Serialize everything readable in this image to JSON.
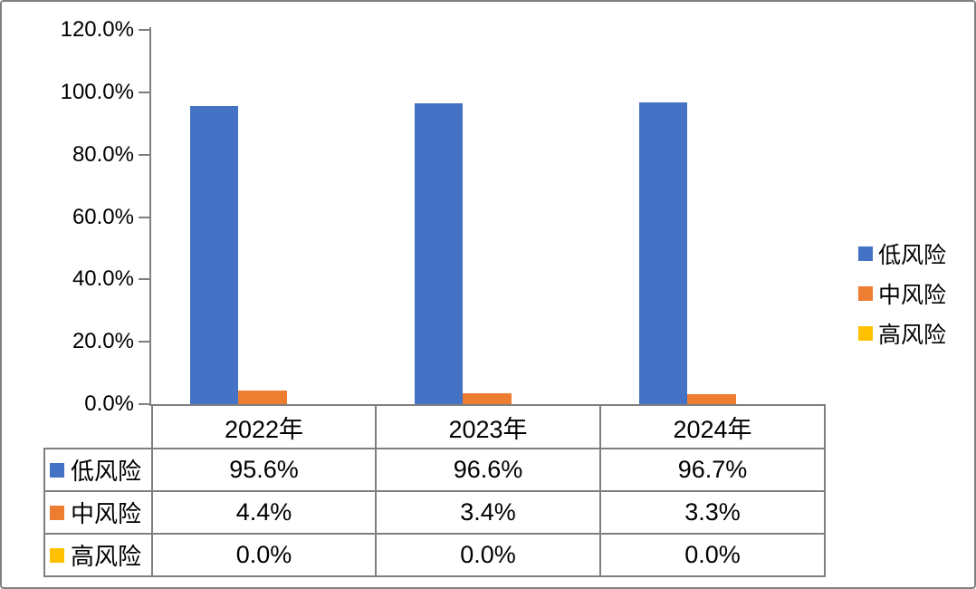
{
  "chart_data": {
    "type": "bar",
    "categories": [
      "2022年",
      "2023年",
      "2024年"
    ],
    "series": [
      {
        "name": "低风险",
        "slug": "low-risk",
        "color": "#4472C4",
        "values": [
          95.6,
          96.6,
          96.7
        ],
        "labels": [
          "95.6%",
          "96.6%",
          "96.7%"
        ]
      },
      {
        "name": "中风险",
        "slug": "mid-risk",
        "color": "#ED7D31",
        "values": [
          4.4,
          3.4,
          3.3
        ],
        "labels": [
          "4.4%",
          "3.4%",
          "3.3%"
        ]
      },
      {
        "name": "高风险",
        "slug": "high-risk",
        "color": "#FFC000",
        "values": [
          0.0,
          0.0,
          0.0
        ],
        "labels": [
          "0.0%",
          "0.0%",
          "0.0%"
        ]
      }
    ],
    "title": "",
    "xlabel": "",
    "ylabel": "",
    "ylim": [
      0,
      120
    ],
    "y_ticks": [
      {
        "value": 120,
        "label": "120.0%"
      },
      {
        "value": 100,
        "label": "100.0%"
      },
      {
        "value": 80,
        "label": "80.0%"
      },
      {
        "value": 60,
        "label": "60.0%"
      },
      {
        "value": 40,
        "label": "40.0%"
      },
      {
        "value": 20,
        "label": "20.0%"
      },
      {
        "value": 0,
        "label": "0.0%"
      }
    ],
    "grid": false,
    "legend_position": "right",
    "legend": [
      {
        "label": "低风险",
        "color": "#4472C4"
      },
      {
        "label": "中风险",
        "color": "#ED7D31"
      },
      {
        "label": "高风险",
        "color": "#FFC000"
      }
    ],
    "data_table_shown": true
  },
  "colors": {
    "axis": "#7f7f7f",
    "table_border": "#7f7f7f",
    "frame_border": "#7f7f7f",
    "background": "#ffffff",
    "text": "#000000"
  }
}
